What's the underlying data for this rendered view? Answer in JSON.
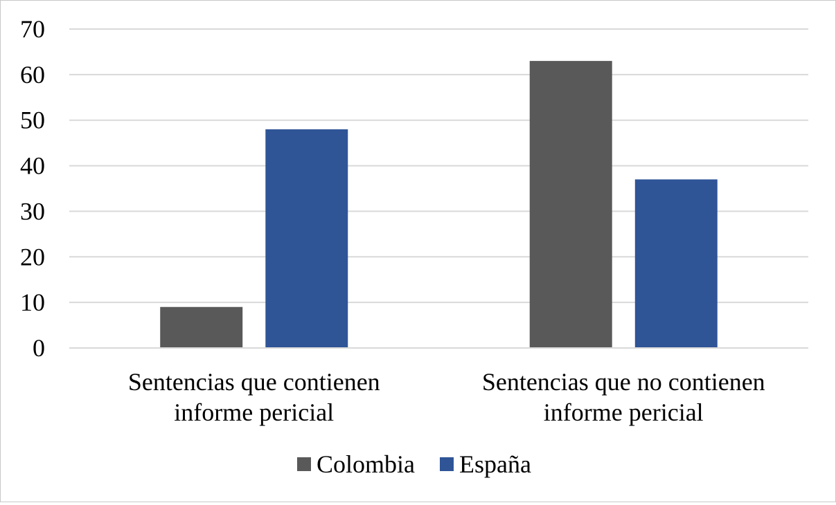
{
  "chart_data": {
    "type": "bar",
    "categories": [
      [
        "Sentencias que contienen",
        "informe pericial"
      ],
      [
        "Sentencias que no contienen",
        "informe pericial"
      ]
    ],
    "series": [
      {
        "name": "Colombia",
        "values": [
          9,
          63
        ],
        "color": "#595959"
      },
      {
        "name": "España",
        "values": [
          48,
          37
        ],
        "color": "#2f5597"
      }
    ],
    "ylim": [
      0,
      70
    ],
    "yticks": [
      0,
      10,
      20,
      30,
      40,
      50,
      60,
      70
    ],
    "grid": true,
    "legend_position": "bottom",
    "title": "",
    "xlabel": "",
    "ylabel": ""
  }
}
